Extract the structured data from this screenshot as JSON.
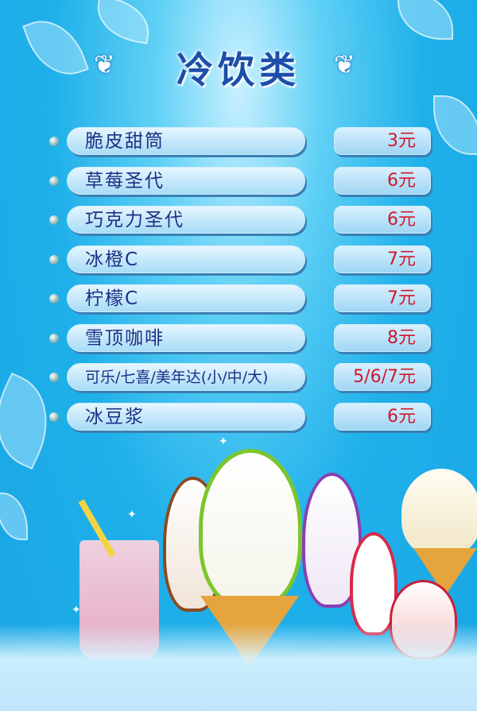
{
  "title": "冷饮类",
  "items": [
    {
      "name": "脆皮甜筒",
      "price": "3元"
    },
    {
      "name": "草莓圣代",
      "price": "6元"
    },
    {
      "name": "巧克力圣代",
      "price": "6元"
    },
    {
      "name": "冰橙C",
      "price": "7元"
    },
    {
      "name": "柠檬C",
      "price": "7元"
    },
    {
      "name": "雪顶咖啡",
      "price": "8元"
    },
    {
      "name": "可乐/七喜/美年达(小/中/大)",
      "price": "5/6/7元"
    },
    {
      "name": "冰豆浆",
      "price": "6元"
    }
  ],
  "colors": {
    "background": "#1fb0ea",
    "title": "#1d4ea8",
    "item_text": "#1d2f86",
    "price_text": "#d0182c"
  }
}
